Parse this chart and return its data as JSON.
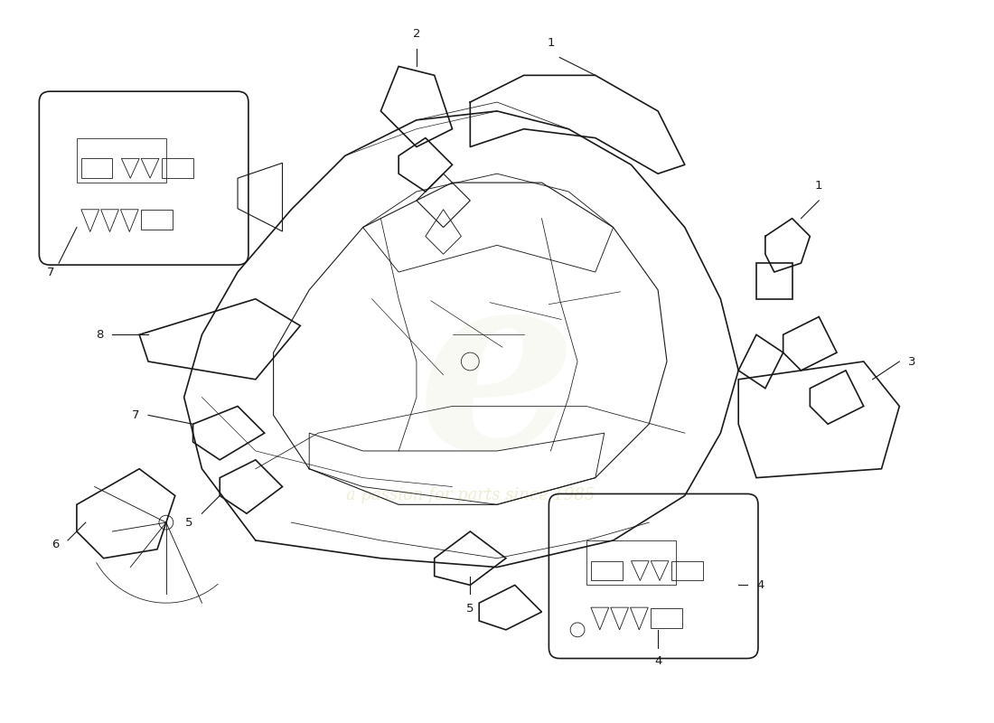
{
  "background_color": "#ffffff",
  "line_color": "#1a1a1a",
  "fig_width": 11.0,
  "fig_height": 8.0,
  "dpi": 100,
  "watermark1": "e",
  "watermark2": "a passion for parts since 1985"
}
